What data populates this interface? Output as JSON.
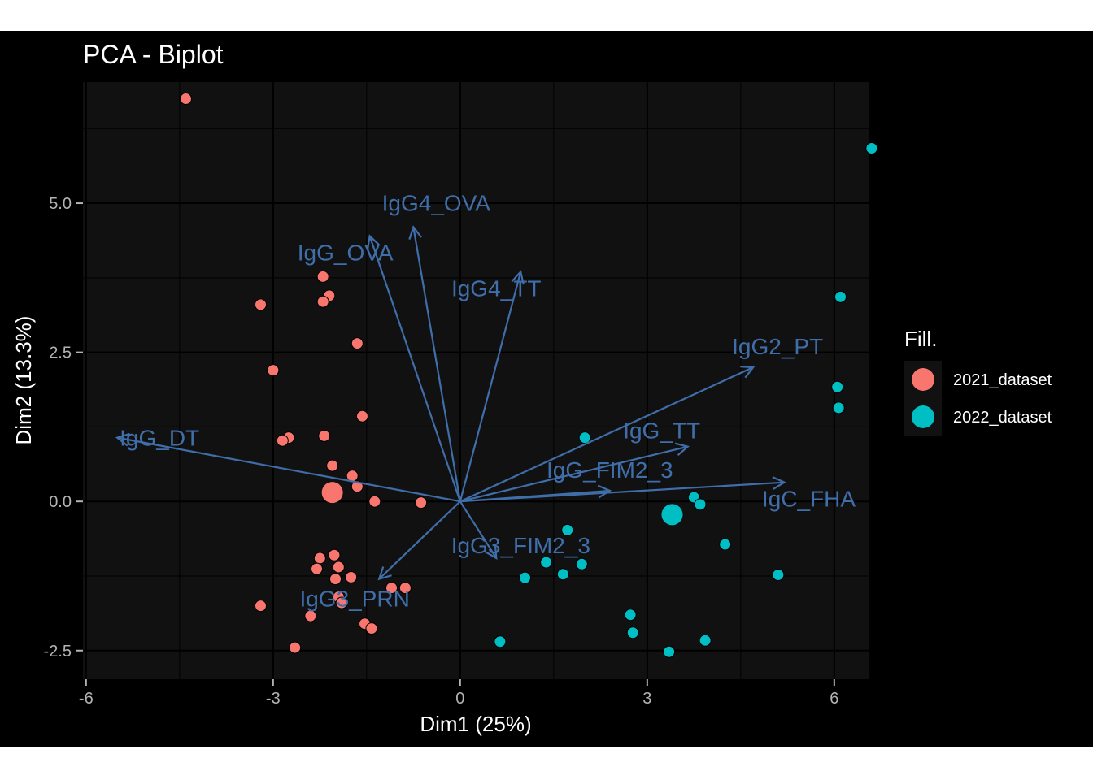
{
  "chart_data": {
    "type": "scatter",
    "title": "PCA - Biplot",
    "xlabel": "Dim1 (25%)",
    "ylabel": "Dim2 (13.3%)",
    "xlim": [
      -6.05,
      6.55
    ],
    "ylim": [
      -2.98,
      7.03
    ],
    "x_ticks": [
      -6,
      -3,
      0,
      3,
      6
    ],
    "x_tick_labels": [
      "-6",
      "-3",
      "0",
      "3",
      "6"
    ],
    "y_ticks": [
      -2.5,
      0,
      2.5,
      5
    ],
    "y_tick_labels": [
      "-2.5",
      "0.0",
      "2.5",
      "5.0"
    ],
    "grid": true,
    "legend": {
      "title": "Fill.",
      "position": "right"
    },
    "series": [
      {
        "name": "2021_dataset",
        "color": "#f8766d",
        "centroid": [
          -2.05,
          0.15
        ],
        "points": [
          [
            -4.4,
            6.75
          ],
          [
            -3.2,
            3.3
          ],
          [
            -2.2,
            3.77
          ],
          [
            -2.1,
            3.45
          ],
          [
            -2.2,
            3.35
          ],
          [
            -1.65,
            2.65
          ],
          [
            -3.0,
            2.2
          ],
          [
            -1.57,
            1.43
          ],
          [
            -2.75,
            1.07
          ],
          [
            -2.85,
            1.02
          ],
          [
            -2.18,
            1.1
          ],
          [
            -2.05,
            0.6
          ],
          [
            -1.73,
            0.43
          ],
          [
            -1.65,
            0.25
          ],
          [
            -1.37,
            0.0
          ],
          [
            -0.63,
            -0.02
          ],
          [
            -2.25,
            -0.95
          ],
          [
            -2.02,
            -0.9
          ],
          [
            -2.3,
            -1.13
          ],
          [
            -1.95,
            -1.1
          ],
          [
            -2.0,
            -1.3
          ],
          [
            -1.75,
            -1.27
          ],
          [
            -0.88,
            -1.45
          ],
          [
            -1.1,
            -1.45
          ],
          [
            -1.95,
            -1.6
          ],
          [
            -1.9,
            -1.7
          ],
          [
            -3.2,
            -1.75
          ],
          [
            -2.4,
            -1.92
          ],
          [
            -1.53,
            -2.05
          ],
          [
            -1.42,
            -2.13
          ],
          [
            -2.65,
            -2.45
          ]
        ]
      },
      {
        "name": "2022_dataset",
        "color": "#00bfc4",
        "centroid": [
          3.4,
          -0.22
        ],
        "points": [
          [
            6.6,
            5.92
          ],
          [
            6.1,
            3.43
          ],
          [
            6.05,
            1.92
          ],
          [
            6.07,
            1.57
          ],
          [
            2.0,
            1.07
          ],
          [
            3.75,
            0.07
          ],
          [
            3.85,
            -0.05
          ],
          [
            1.72,
            -0.48
          ],
          [
            4.25,
            -0.72
          ],
          [
            1.38,
            -1.02
          ],
          [
            1.95,
            -1.05
          ],
          [
            1.65,
            -1.22
          ],
          [
            5.1,
            -1.23
          ],
          [
            1.04,
            -1.28
          ],
          [
            2.73,
            -1.9
          ],
          [
            2.77,
            -2.2
          ],
          [
            0.64,
            -2.35
          ],
          [
            3.93,
            -2.33
          ],
          [
            3.35,
            -2.52
          ]
        ]
      }
    ],
    "variables": [
      {
        "name": "IgG4_OVA",
        "x": -0.75,
        "y": 4.6
      },
      {
        "name": "IgG_OVA",
        "x": -1.45,
        "y": 4.45
      },
      {
        "name": "IgG4_TT",
        "x": 0.97,
        "y": 3.85
      },
      {
        "name": "IgG2_PT",
        "x": 4.7,
        "y": 2.25
      },
      {
        "name": "IgG_DT",
        "x": -5.5,
        "y": 1.07
      },
      {
        "name": "IgG_TT",
        "x": 3.65,
        "y": 0.92
      },
      {
        "name": "IgG_FIM2_3",
        "x": 2.4,
        "y": 0.18
      },
      {
        "name": "IgC_FHA",
        "x": 5.2,
        "y": 0.32
      },
      {
        "name": "IgG3_FIM2_3",
        "x": 0.58,
        "y": -0.95
      },
      {
        "name": "IgG3_PRN",
        "x": -1.3,
        "y": -1.3
      }
    ]
  }
}
